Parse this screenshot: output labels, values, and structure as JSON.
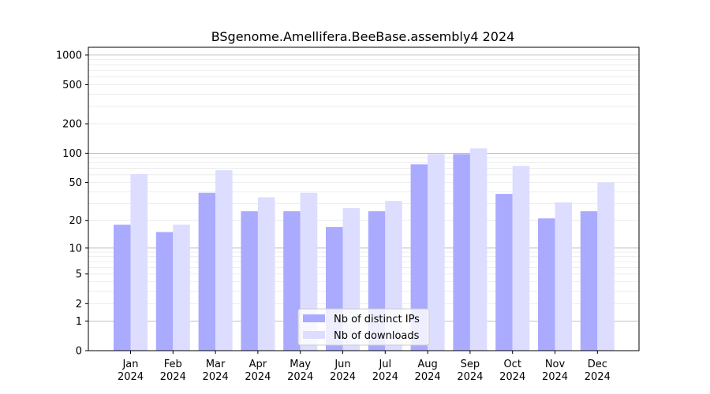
{
  "chart_data": {
    "type": "bar",
    "title": "BSgenome.Amellifera.BeeBase.assembly4 2024",
    "xlabel": "",
    "ylabel": "",
    "yscale": "log(1+y)",
    "ylim": [
      0,
      1200
    ],
    "yticks": [
      {
        "value": 0,
        "label": "0"
      },
      {
        "value": 1,
        "label": "1"
      },
      {
        "value": 2,
        "label": "2"
      },
      {
        "value": 5,
        "label": "5"
      },
      {
        "value": 10,
        "label": "10"
      },
      {
        "value": 20,
        "label": "20"
      },
      {
        "value": 50,
        "label": "50"
      },
      {
        "value": 100,
        "label": "100"
      },
      {
        "value": 200,
        "label": "200"
      },
      {
        "value": 500,
        "label": "500"
      },
      {
        "value": 1000,
        "label": "1000"
      }
    ],
    "categories": [
      {
        "month": "Jan",
        "year": "2024"
      },
      {
        "month": "Feb",
        "year": "2024"
      },
      {
        "month": "Mar",
        "year": "2024"
      },
      {
        "month": "Apr",
        "year": "2024"
      },
      {
        "month": "May",
        "year": "2024"
      },
      {
        "month": "Jun",
        "year": "2024"
      },
      {
        "month": "Jul",
        "year": "2024"
      },
      {
        "month": "Aug",
        "year": "2024"
      },
      {
        "month": "Sep",
        "year": "2024"
      },
      {
        "month": "Oct",
        "year": "2024"
      },
      {
        "month": "Nov",
        "year": "2024"
      },
      {
        "month": "Dec",
        "year": "2024"
      }
    ],
    "series": [
      {
        "name": "Nb of distinct IPs",
        "color": "#aaaaff",
        "values": [
          18,
          15,
          39,
          25,
          25,
          17,
          25,
          77,
          98,
          38,
          21,
          25
        ]
      },
      {
        "name": "Nb of downloads",
        "color": "#ddddff",
        "values": [
          61,
          18,
          67,
          35,
          39,
          27,
          32,
          98,
          112,
          74,
          31,
          50
        ]
      }
    ],
    "legend": {
      "position": "lower center"
    },
    "grid": true
  }
}
